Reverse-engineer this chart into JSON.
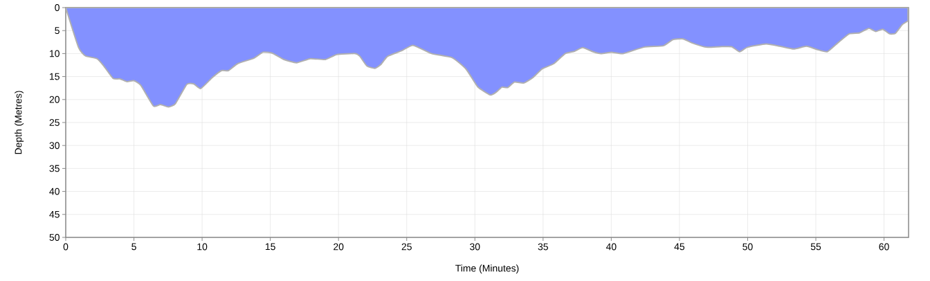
{
  "chart_data": {
    "type": "area",
    "xlabel": "Time (Minutes)",
    "ylabel": "Depth (Metres)",
    "x": [
      0,
      0.93,
      1.44,
      2.28,
      2.79,
      3.47,
      3.97,
      4.48,
      4.99,
      5.5,
      6.43,
      6.94,
      7.53,
      8.04,
      8.88,
      9.39,
      9.9,
      10.75,
      11.42,
      11.93,
      12.6,
      13.79,
      14.47,
      15.14,
      16.0,
      16.92,
      17.94,
      19.04,
      19.88,
      21.24,
      21.57,
      22.08,
      22.67,
      23.1,
      23.6,
      24.62,
      25.47,
      26.82,
      28.34,
      29.36,
      30.2,
      31.13,
      31.56,
      31.98,
      32.4,
      32.91,
      33.59,
      34.26,
      34.94,
      35.79,
      36.63,
      37.31,
      37.9,
      38.66,
      39.25,
      40.02,
      40.86,
      42.39,
      43.82,
      44.5,
      45.26,
      45.94,
      46.95,
      47.97,
      48.82,
      49.41,
      50.0,
      51.35,
      52.37,
      53.38,
      54.31,
      55.08,
      55.84,
      56.6,
      57.45,
      58.2,
      58.88,
      59.39,
      59.9,
      60.41,
      60.83,
      61.34,
      61.76
    ],
    "series": [
      {
        "color": "#8391ff",
        "values": [
          0,
          8.6,
          10.5,
          11.1,
          12.7,
          15.4,
          15.5,
          16.1,
          15.9,
          16.9,
          21.4,
          21.1,
          21.6,
          20.9,
          16.7,
          16.6,
          17.6,
          15.2,
          13.7,
          13.7,
          12.2,
          11.0,
          9.7,
          9.9,
          11.3,
          12.0,
          11.1,
          11.3,
          10.2,
          10.0,
          10.6,
          12.7,
          13.2,
          12.4,
          10.6,
          9.4,
          8.2,
          10.0,
          10.9,
          13.4,
          17.2,
          19.0,
          18.4,
          17.3,
          17.4,
          16.2,
          16.4,
          15.2,
          13.3,
          12.2,
          10.0,
          9.5,
          8.7,
          9.6,
          10.0,
          9.7,
          10.0,
          8.6,
          8.3,
          7.0,
          6.8,
          7.7,
          8.6,
          8.5,
          8.5,
          9.6,
          8.6,
          7.9,
          8.4,
          9.0,
          8.4,
          9.1,
          9.6,
          7.7,
          5.7,
          5.5,
          4.5,
          5.2,
          4.7,
          5.7,
          5.6,
          3.7,
          2.9
        ]
      }
    ],
    "xlim": [
      0,
      61.8
    ],
    "xticks": [
      0,
      5,
      10,
      15,
      20,
      25,
      30,
      35,
      40,
      45,
      50,
      55,
      60
    ],
    "ylim": [
      50,
      0
    ],
    "yticks": [
      0,
      5,
      10,
      15,
      20,
      25,
      30,
      35,
      40,
      45,
      50
    ],
    "grid": true
  }
}
